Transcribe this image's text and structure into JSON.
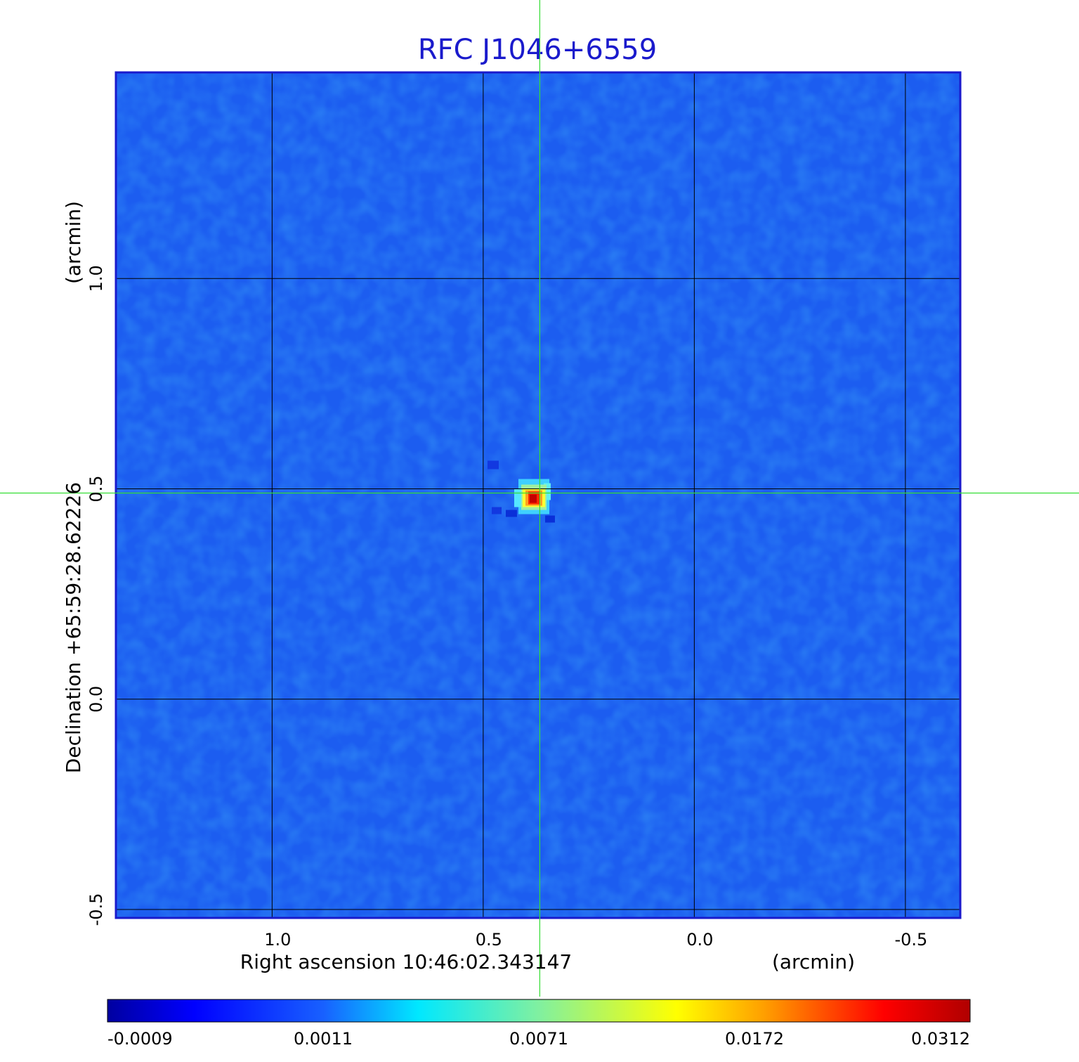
{
  "chart_data": {
    "type": "heatmap",
    "title": "RFC J1046+6559",
    "xlabel": "Right ascension  10:46:02.343147",
    "xunit": "(arcmin)",
    "ylabel": "Declination  +65:59:28.62226",
    "yunit": "(arcmin)",
    "xlim": [
      1.37,
      -0.63
    ],
    "ylim": [
      -0.52,
      1.49
    ],
    "x_ticks": [
      {
        "value": 1.0,
        "label": "1.0"
      },
      {
        "value": 0.5,
        "label": "0.5"
      },
      {
        "value": 0.0,
        "label": "0.0"
      },
      {
        "value": -0.5,
        "label": "-0.5"
      }
    ],
    "y_ticks": [
      {
        "value": 1.0,
        "label": "1.0"
      },
      {
        "value": 0.5,
        "label": "0.5"
      },
      {
        "value": 0.0,
        "label": "0.0"
      },
      {
        "value": -0.5,
        "label": "-0.5"
      }
    ],
    "grid": true,
    "source": {
      "x": 0.38,
      "y": 0.48,
      "peak": 0.0312
    },
    "crosshair": {
      "x": 0.366,
      "y": 0.49
    },
    "colormap": "jet",
    "colorbar": {
      "orientation": "horizontal",
      "ticks": [
        "-0.0009",
        "0.0011",
        "0.0071",
        "0.0172",
        "0.0312"
      ]
    },
    "colors": {
      "title": "#1a1acc",
      "frame": "#1a1acc",
      "background": "#1c5df0",
      "crosshair": "#33dd33",
      "grid": "#000000"
    }
  }
}
